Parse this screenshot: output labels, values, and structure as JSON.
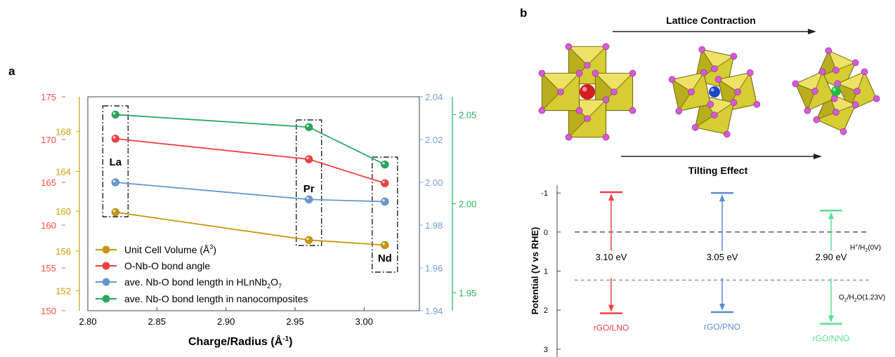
{
  "panel_a": {
    "label": "a",
    "chart_data": {
      "type": "line",
      "xlabel_base": "Charge/Radius (Å",
      "xlabel_sup": "-1",
      "xlabel_close": ")",
      "xlim": [
        2.8,
        3.04
      ],
      "x_ticks": [
        "2.80",
        "2.85",
        "2.90",
        "2.95",
        "3.00"
      ],
      "x": [
        2.82,
        2.96,
        3.015
      ],
      "point_labels": [
        "La",
        "Pr",
        "Nd"
      ],
      "axes": {
        "red": {
          "ylim": [
            150,
            175
          ],
          "ticks": [
            "150",
            "155",
            "160",
            "165",
            "170",
            "175"
          ],
          "color": "#ff4c4c"
        },
        "yellow": {
          "ylim": [
            150,
            171.5
          ],
          "ticks": [
            "152",
            "156",
            "160",
            "164",
            "168"
          ],
          "color": "#c8a000"
        },
        "blue": {
          "ylim": [
            1.94,
            2.04
          ],
          "ticks": [
            "1.94",
            "1.96",
            "1.98",
            "2.00",
            "2.02",
            "2.04"
          ],
          "color": "#6fa0d8"
        },
        "green": {
          "ylim": [
            1.94,
            2.06
          ],
          "ticks": [
            "1.95",
            "2.00",
            "2.05"
          ],
          "color": "#22b060"
        }
      },
      "series": [
        {
          "name_base": "Unit Cell Volume (Å",
          "name_sup": "3",
          "name_close": ")",
          "axis": "yellow",
          "color": "#c8960a",
          "values": [
            159.9,
            157.1,
            156.6
          ]
        },
        {
          "name_base": "O-Nb-O bond angle",
          "axis": "red",
          "color": "#f04040",
          "values": [
            170.1,
            167.7,
            164.9
          ]
        },
        {
          "name_base": "ave. Nb-O bond length in HLnNb",
          "name_sub1": "2",
          "name_mid": "O",
          "name_sub2": "7",
          "axis": "blue",
          "color": "#6698d0",
          "values": [
            2.0,
            1.992,
            1.991
          ]
        },
        {
          "name_base": "ave. Nb-O bond length in nanocomposites",
          "axis": "green",
          "color": "#28a860",
          "values": [
            2.05,
            2.043,
            2.022
          ]
        }
      ]
    }
  },
  "panel_b": {
    "label": "b",
    "lattice_label": "Lattice Contraction",
    "tilting_label": "Tilting Effect",
    "atom_colors": [
      "#d21e1e",
      "#1e46c8",
      "#1ebe3c"
    ],
    "chart_data": {
      "type": "bar",
      "ylabel": "Potential (V vs RHE)",
      "ylim": [
        -1.2,
        3.2
      ],
      "y_ticks": [
        "-1",
        "0",
        "1",
        "2",
        "3"
      ],
      "categories": [
        "rGO/LNO",
        "rGO/PNO",
        "rGO/NNO"
      ],
      "cb": [
        -1.02,
        -1.0,
        -0.55
      ],
      "vb": [
        2.08,
        2.05,
        2.35
      ],
      "gap_labels": [
        "3.10 eV",
        "3.05 eV",
        "2.90 eV"
      ],
      "colors": [
        "#f04040",
        "#5a8ccc",
        "#5ae094"
      ],
      "ref_lines": [
        {
          "y": 0,
          "label_a": "H",
          "label_sup": "+",
          "label_b": "/H",
          "label_sub": "2",
          "label_c": "(0V)"
        },
        {
          "y": 1.23,
          "label_a": "O",
          "label_sub": "2",
          "label_b": "/H",
          "label_sub2": "2",
          "label_c": "O(1.23V)"
        }
      ]
    }
  }
}
